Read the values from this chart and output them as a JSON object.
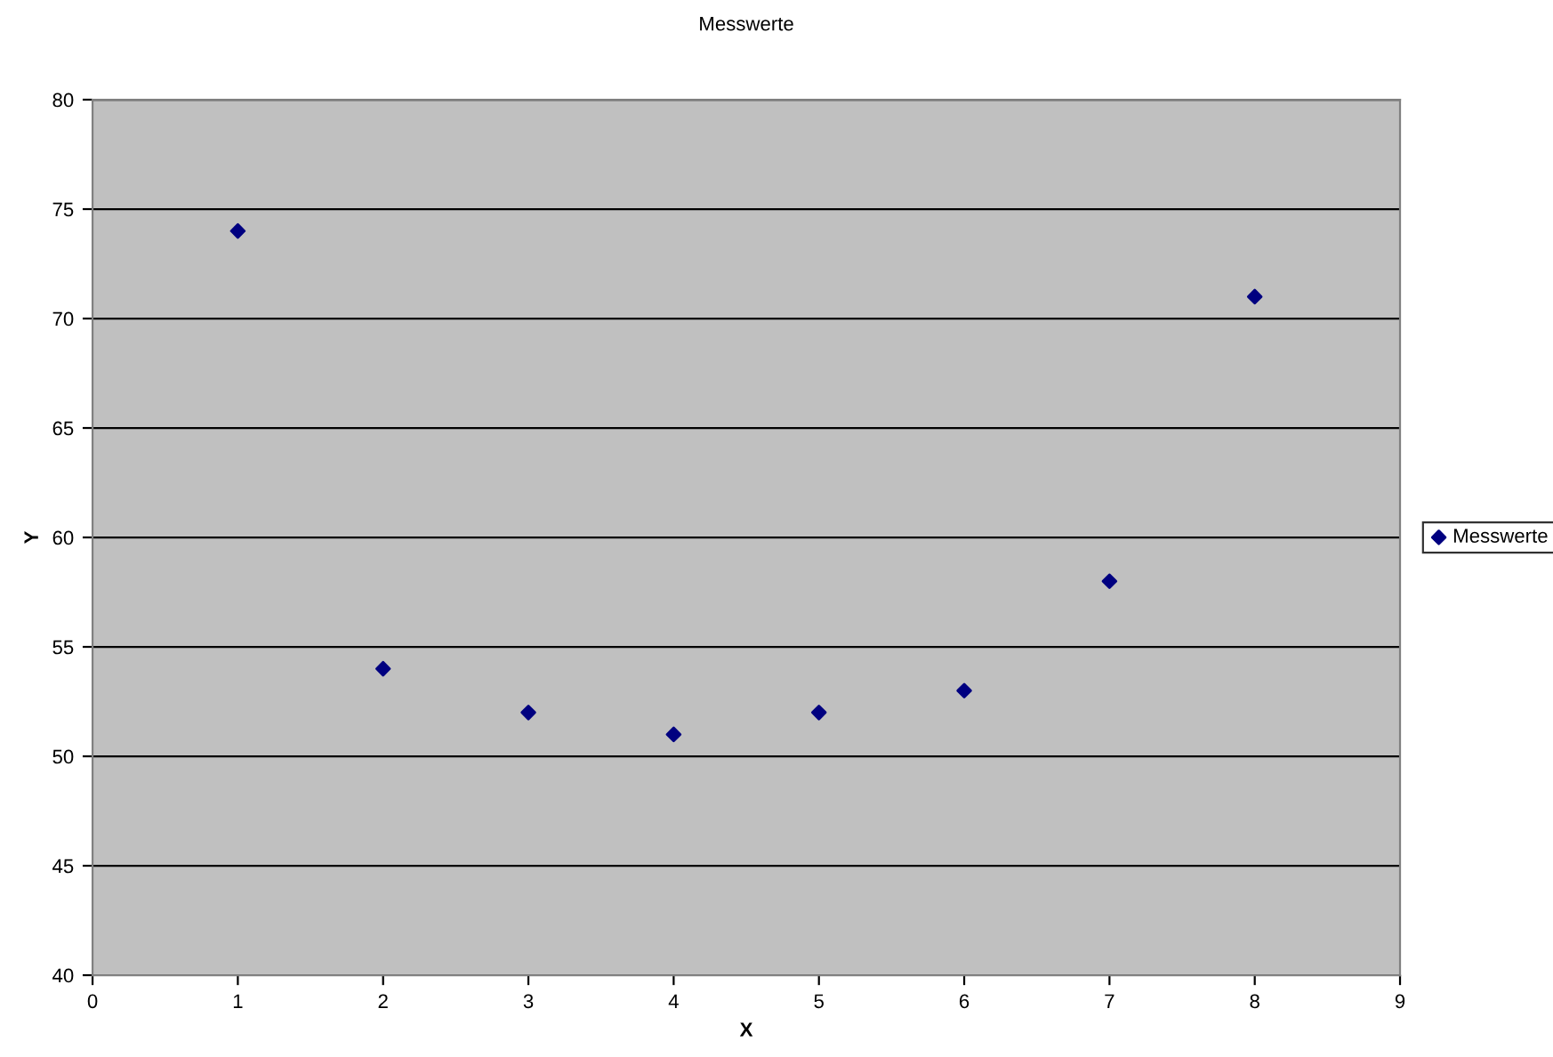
{
  "chart_data": {
    "type": "scatter",
    "title": "Messwerte",
    "xlabel": "X",
    "ylabel": "Y",
    "x": [
      1,
      2,
      3,
      4,
      5,
      6,
      7,
      8
    ],
    "series": [
      {
        "name": "Messwerte",
        "color": "#000080",
        "values": [
          74,
          54,
          52,
          51,
          52,
          53,
          58,
          71
        ]
      }
    ],
    "xlim": [
      0,
      9
    ],
    "xticks": [
      0,
      1,
      2,
      3,
      4,
      5,
      6,
      7,
      8,
      9
    ],
    "ylim": [
      40,
      80
    ],
    "yticks": [
      40,
      45,
      50,
      55,
      60,
      65,
      70,
      75,
      80
    ],
    "grid": "y",
    "legend": "right",
    "marker": "diamond"
  }
}
